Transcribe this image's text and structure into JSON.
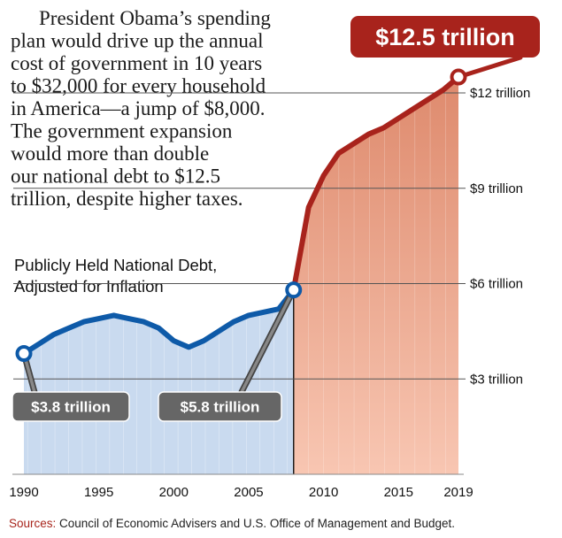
{
  "intro_lines": [
    "President Obama’s spending",
    "plan would drive up the annual",
    "cost of government in 10 years",
    "to $32,000 for every household",
    "in America—a jump of $8,000.",
    "The government expansion",
    "would more than double",
    "our national debt to $12.5",
    "trillion, despite higher taxes."
  ],
  "colors": {
    "historical_line": "#0e5aa8",
    "historical_fill": "#c9daef",
    "projected_line": "#a8231c",
    "projected_fill": "#f0a98f",
    "label_dark": "#666666",
    "label_red": "#a8231c"
  },
  "chart_data": {
    "type": "area",
    "title": "Publicly Held National Debt, Adjusted for Inflation",
    "title_lines": [
      "Publicly Held National Debt,",
      "Adjusted for Inflation"
    ],
    "xlim": [
      1990,
      2019
    ],
    "ylim": [
      0,
      13
    ],
    "x_ticks": [
      "1990",
      "1995",
      "2000",
      "2005",
      "2010",
      "2015",
      "2019"
    ],
    "y_ticks": [
      {
        "value": 3,
        "label": "$3 trillion"
      },
      {
        "value": 6,
        "label": "$6 trillion"
      },
      {
        "value": 9,
        "label": "$9 trillion"
      },
      {
        "value": 12,
        "label": "$12 trillion"
      }
    ],
    "series": [
      {
        "name": "historical",
        "x": [
          1990,
          1991,
          1992,
          1993,
          1994,
          1995,
          1996,
          1997,
          1998,
          1999,
          2000,
          2001,
          2002,
          2003,
          2004,
          2005,
          2006,
          2007,
          2008
        ],
        "values": [
          3.8,
          4.1,
          4.4,
          4.6,
          4.8,
          4.9,
          5.0,
          4.9,
          4.8,
          4.6,
          4.2,
          4.0,
          4.2,
          4.5,
          4.8,
          5.0,
          5.1,
          5.2,
          5.8
        ]
      },
      {
        "name": "projected",
        "x": [
          2008,
          2009,
          2010,
          2011,
          2012,
          2013,
          2014,
          2015,
          2016,
          2017,
          2018,
          2019
        ],
        "values": [
          5.8,
          8.4,
          9.4,
          10.1,
          10.4,
          10.7,
          10.9,
          11.2,
          11.5,
          11.8,
          12.1,
          12.5
        ]
      }
    ],
    "annotations": [
      {
        "text": "$3.8 trillion",
        "x": 1990,
        "y": 3.8,
        "style": "dark"
      },
      {
        "text": "$5.8 trillion",
        "x": 2008,
        "y": 5.8,
        "style": "dark"
      },
      {
        "text": "$12.5 trillion",
        "x": 2019,
        "y": 12.5,
        "style": "red"
      }
    ],
    "source_label": "Sources:",
    "source_text": " Council of Economic Advisers and U.S. Office of Management and Budget."
  }
}
